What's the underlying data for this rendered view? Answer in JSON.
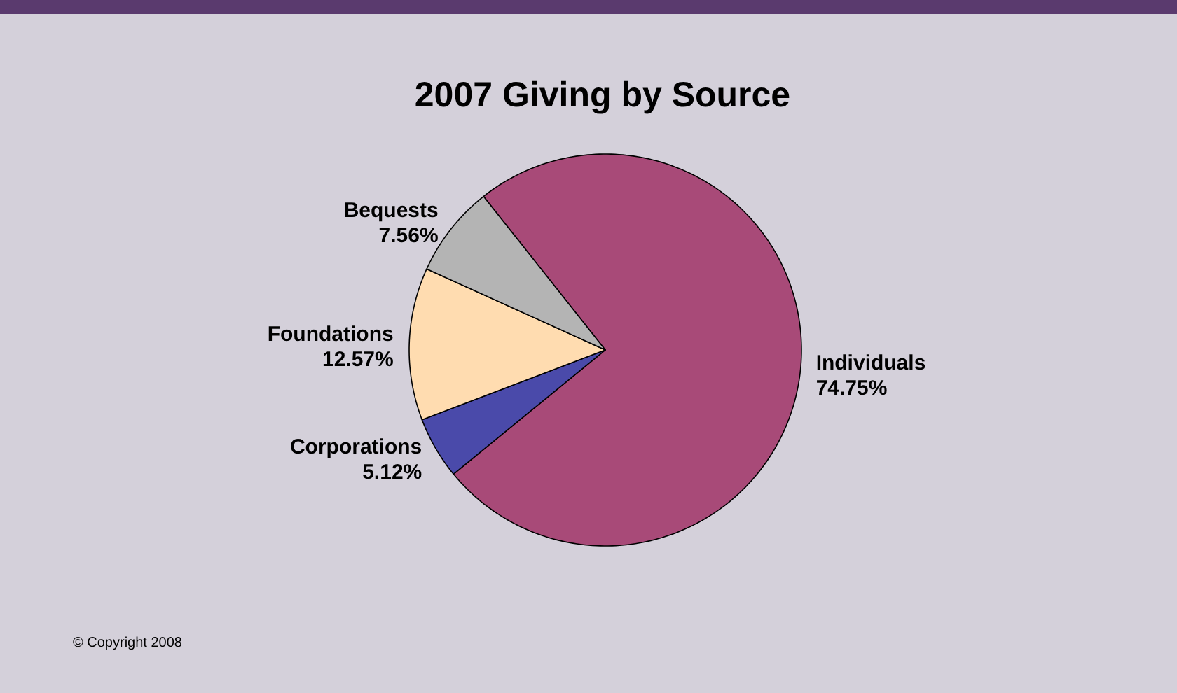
{
  "chart_data": {
    "type": "pie",
    "title": "2007 Giving by Source",
    "categories": [
      "Individuals",
      "Corporations",
      "Foundations",
      "Bequests"
    ],
    "values": [
      74.75,
      5.12,
      12.57,
      7.56
    ],
    "value_labels": [
      "74.75%",
      "5.12%",
      "12.57%",
      "7.56%"
    ],
    "colors": [
      "#a84a78",
      "#4a4aaa",
      "#ffdcb0",
      "#b4b4b4"
    ],
    "annotations": [
      "© Copyright 2008"
    ]
  }
}
